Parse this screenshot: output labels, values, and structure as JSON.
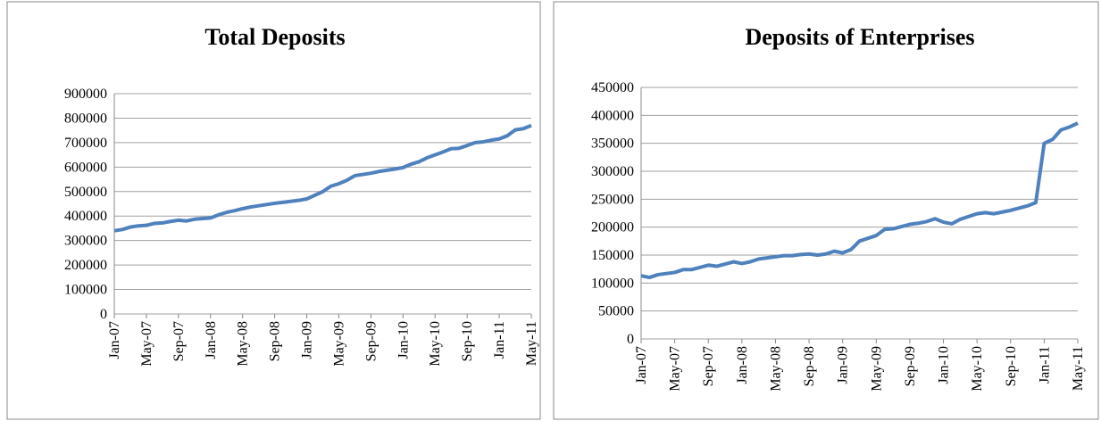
{
  "chart_data": [
    {
      "type": "line",
      "title": "Total  Deposits",
      "categories": [
        "Jan-07",
        null,
        null,
        null,
        "May-07",
        null,
        null,
        null,
        "Sep-07",
        null,
        null,
        null,
        "Jan-08",
        null,
        null,
        null,
        "May-08",
        null,
        null,
        null,
        "Sep-08",
        null,
        null,
        null,
        "Jan-09",
        null,
        null,
        null,
        "May-09",
        null,
        null,
        null,
        "Sep-09",
        null,
        null,
        null,
        "Jan-10",
        null,
        null,
        null,
        "May-10",
        null,
        null,
        null,
        "Sep-10",
        null,
        null,
        null,
        "Jan-11",
        null,
        null,
        null,
        "May-11"
      ],
      "values": [
        340000,
        345000,
        355000,
        360000,
        362000,
        370000,
        372000,
        378000,
        383000,
        380000,
        387000,
        390000,
        392000,
        405000,
        415000,
        422000,
        430000,
        437000,
        442000,
        447000,
        452000,
        456000,
        460000,
        464000,
        470000,
        485000,
        500000,
        522000,
        532000,
        546000,
        565000,
        570000,
        575000,
        582000,
        587000,
        592000,
        598000,
        612000,
        622000,
        638000,
        650000,
        662000,
        675000,
        677000,
        688000,
        700000,
        703000,
        710000,
        715000,
        728000,
        752000,
        757000,
        770000
      ],
      "color": "#4f81bd",
      "ylim": [
        0,
        900000
      ],
      "yticks": [
        0,
        100000,
        200000,
        300000,
        400000,
        500000,
        600000,
        700000,
        800000,
        900000
      ],
      "grid": true
    },
    {
      "type": "line",
      "title": "Deposits of Enterprises",
      "categories": [
        "Jan-07",
        null,
        null,
        null,
        "May-07",
        null,
        null,
        null,
        "Sep-07",
        null,
        null,
        null,
        "Jan-08",
        null,
        null,
        null,
        "May-08",
        null,
        null,
        null,
        "Sep-08",
        null,
        null,
        null,
        "Jan-09",
        null,
        null,
        null,
        "May-09",
        null,
        null,
        null,
        "Sep-09",
        null,
        null,
        null,
        "Jan-10",
        null,
        null,
        null,
        "May-10",
        null,
        null,
        null,
        "Sep-10",
        null,
        null,
        null,
        "Jan-11",
        null,
        null,
        null,
        "May-11"
      ],
      "values": [
        113000,
        110000,
        115000,
        117000,
        119000,
        124000,
        124000,
        128000,
        132000,
        130000,
        134000,
        138000,
        135000,
        138000,
        143000,
        145000,
        147000,
        149000,
        149000,
        151000,
        152000,
        150000,
        152000,
        157000,
        154000,
        160000,
        175000,
        180000,
        185000,
        196000,
        197000,
        201000,
        205000,
        207000,
        210000,
        215000,
        209000,
        206000,
        214000,
        219000,
        224000,
        226000,
        224000,
        227000,
        230000,
        234000,
        238000,
        244000,
        350000,
        357000,
        374000,
        379000,
        386000
      ],
      "color": "#4f81bd",
      "ylim": [
        0,
        450000
      ],
      "yticks": [
        0,
        50000,
        100000,
        150000,
        200000,
        250000,
        300000,
        350000,
        400000,
        450000
      ],
      "grid": true
    }
  ]
}
